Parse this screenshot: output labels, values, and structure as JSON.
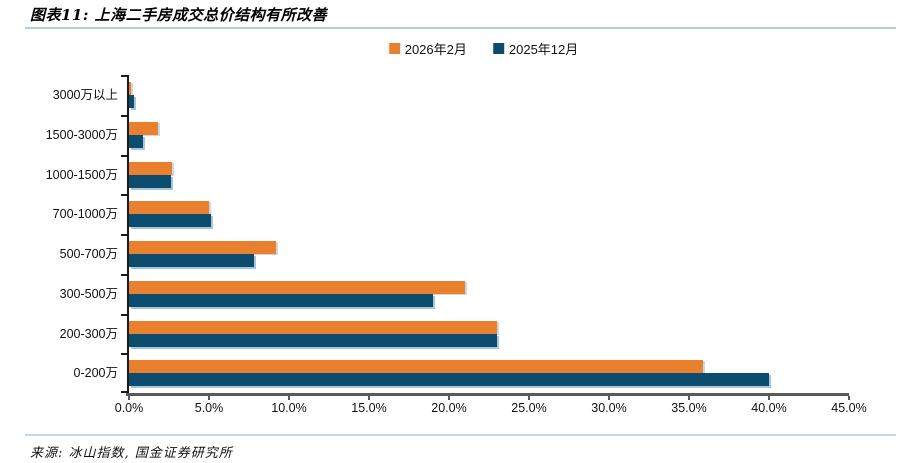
{
  "header": {
    "title": "图表11: 上海二手房成交总价结构有所改善"
  },
  "legend": [
    {
      "label": "2026年2月",
      "color": "#e8802d"
    },
    {
      "label": "2025年12月",
      "color": "#0b4c6f"
    }
  ],
  "chart_data": {
    "type": "bar",
    "orientation": "horizontal",
    "title": "上海二手房成交总价结构有所改善",
    "categories": [
      "3000万以上",
      "1500-3000万",
      "1000-1500万",
      "700-1000万",
      "500-700万",
      "300-500万",
      "200-300万",
      "0-200万"
    ],
    "series": [
      {
        "name": "2026年2月",
        "color": "#e8802d",
        "values": [
          0.1,
          1.8,
          2.7,
          5.0,
          9.2,
          21.0,
          23.0,
          35.9
        ]
      },
      {
        "name": "2025年12月",
        "color": "#0b4c6f",
        "values": [
          0.3,
          0.9,
          2.6,
          5.1,
          7.8,
          19.0,
          23.0,
          40.0
        ]
      }
    ],
    "xlim": [
      0,
      45
    ],
    "x_tick_step": 5,
    "x_tick_labels": [
      "0.0%",
      "5.0%",
      "10.0%",
      "15.0%",
      "20.0%",
      "25.0%",
      "30.0%",
      "35.0%",
      "40.0%",
      "45.0%"
    ],
    "grid": false,
    "legend_position": "top-center",
    "value_unit": "percent"
  },
  "footer": {
    "source": "来源: 冰山指数, 国金证券研究所"
  }
}
